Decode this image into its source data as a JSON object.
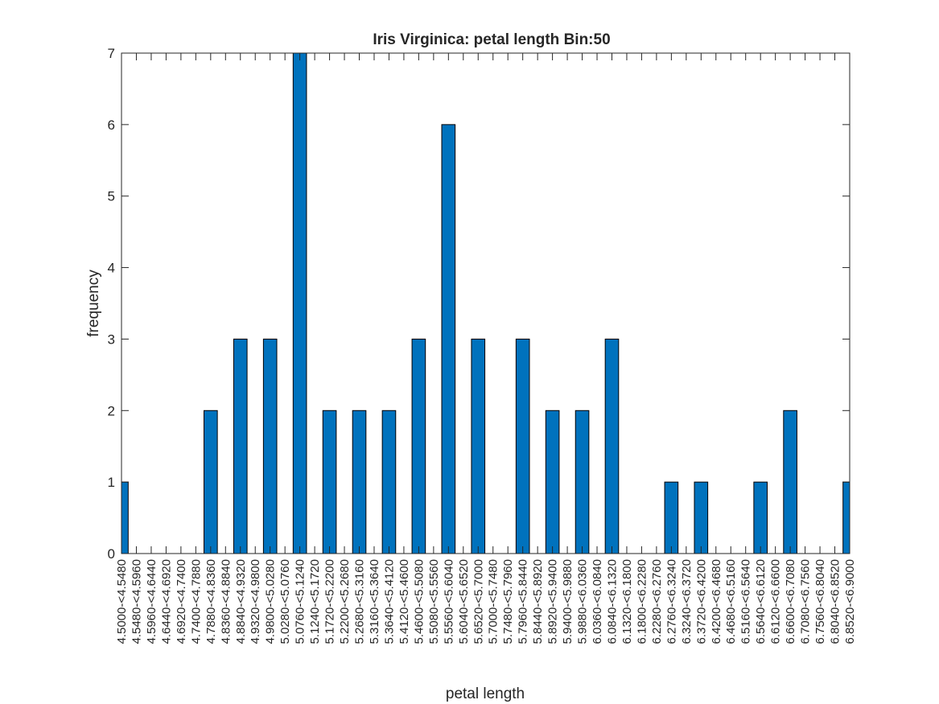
{
  "chart_data": {
    "type": "bar",
    "title": "Iris Virginica: petal length Bin:50",
    "xlabel": "petal length",
    "ylabel": "frequency",
    "ylim": [
      0,
      7
    ],
    "yticks": [
      "0",
      "1",
      "2",
      "3",
      "4",
      "5",
      "6",
      "7"
    ],
    "grid": false,
    "bar_color": "#0072BD",
    "categories": [
      "4.5000-<4.5480",
      "4.5480-<4.5960",
      "4.5960-<4.6440",
      "4.6440-<4.6920",
      "4.6920-<4.7400",
      "4.7400-<4.7880",
      "4.7880-<4.8360",
      "4.8360-<4.8840",
      "4.8840-<4.9320",
      "4.9320-<4.9800",
      "4.9800-<5.0280",
      "5.0280-<5.0760",
      "5.0760-<5.1240",
      "5.1240-<5.1720",
      "5.1720-<5.2200",
      "5.2200-<5.2680",
      "5.2680-<5.3160",
      "5.3160-<5.3640",
      "5.3640-<5.4120",
      "5.4120-<5.4600",
      "5.4600-<5.5080",
      "5.5080-<5.5560",
      "5.5560-<5.6040",
      "5.6040-<5.6520",
      "5.6520-<5.7000",
      "5.7000-<5.7480",
      "5.7480-<5.7960",
      "5.7960-<5.8440",
      "5.8440-<5.8920",
      "5.8920-<5.9400",
      "5.9400-<5.9880",
      "5.9880-<6.0360",
      "6.0360-<6.0840",
      "6.0840-<6.1320",
      "6.1320-<6.1800",
      "6.1800-<6.2280",
      "6.2280-<6.2760",
      "6.2760-<6.3240",
      "6.3240-<6.3720",
      "6.3720-<6.4200",
      "6.4200-<6.4680",
      "6.4680-<6.5160",
      "6.5160-<6.5640",
      "6.5640-<6.6120",
      "6.6120-<6.6600",
      "6.6600-<6.7080",
      "6.7080-<6.7560",
      "6.7560-<6.8040",
      "6.8040-<6.8520",
      "6.8520-<6.9000"
    ],
    "values": [
      1,
      0,
      0,
      0,
      0,
      0,
      2,
      0,
      3,
      0,
      3,
      0,
      7,
      0,
      2,
      0,
      2,
      0,
      2,
      0,
      3,
      0,
      6,
      0,
      3,
      0,
      0,
      3,
      0,
      2,
      0,
      2,
      0,
      3,
      0,
      0,
      0,
      1,
      0,
      1,
      0,
      0,
      0,
      1,
      0,
      2,
      0,
      0,
      0,
      1
    ]
  }
}
